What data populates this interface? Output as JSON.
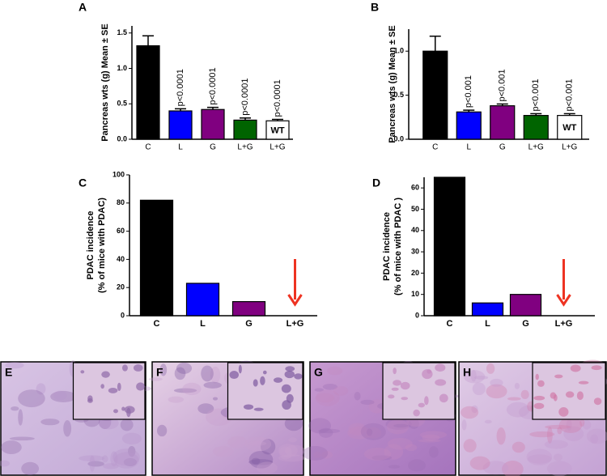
{
  "chart_data": [
    {
      "type": "bar",
      "panel": "A",
      "ylabel": [
        "Pancreas wts (g) Mean ± SE"
      ],
      "categories": [
        "C",
        "L",
        "G",
        "L+G",
        "L+G"
      ],
      "values": [
        1.32,
        0.4,
        0.42,
        0.27,
        0.26
      ],
      "errors": [
        0.14,
        0.03,
        0.03,
        0.03,
        0.02
      ],
      "colors": [
        "#000000",
        "#0000ff",
        "#800080",
        "#006400",
        "#ffffff"
      ],
      "annotations": [
        null,
        "p<0.0001",
        "p<0.0001",
        "p<0.0001",
        "p<0.0001"
      ],
      "bar_labels": [
        null,
        null,
        null,
        null,
        "WT"
      ],
      "ylim": [
        0,
        1.6
      ],
      "yticks": [
        {
          "value": 0,
          "label": "0.0"
        },
        0.5,
        {
          "value": 1,
          "label": "1.0"
        },
        1.5
      ]
    },
    {
      "type": "bar",
      "panel": "B",
      "ylabel": [
        "Pancreas wts (g) Mean ± SE"
      ],
      "categories": [
        "C",
        "L",
        "G",
        "L+G",
        "L+G"
      ],
      "values": [
        1.0,
        0.31,
        0.38,
        0.27,
        0.27
      ],
      "errors": [
        0.17,
        0.02,
        0.02,
        0.02,
        0.02
      ],
      "colors": [
        "#000000",
        "#0000ff",
        "#800080",
        "#006400",
        "#ffffff"
      ],
      "annotations": [
        null,
        "p<0.001",
        "p<0.001",
        "p<0.001",
        "p<0.001"
      ],
      "bar_labels": [
        null,
        null,
        null,
        null,
        "WT"
      ],
      "ylim": [
        0,
        1.25
      ],
      "yticks": [
        {
          "value": 0,
          "label": "0.0"
        },
        0.5,
        {
          "value": 1,
          "label": "1.0"
        }
      ]
    },
    {
      "type": "bar",
      "panel": "C",
      "ylabel": [
        "PDAC incidence",
        "(% of mice with PDAC)"
      ],
      "categories": [
        "C",
        "L",
        "G",
        "L+G"
      ],
      "values": [
        82,
        23,
        10,
        0
      ],
      "colors": [
        "#000000",
        "#0000ff",
        "#800080",
        "#006400"
      ],
      "ylim": [
        0,
        100
      ],
      "yticks": [
        0,
        20,
        40,
        60,
        80,
        100
      ]
    },
    {
      "type": "bar",
      "panel": "D",
      "ylabel": [
        "PDAC incidence",
        "(% of mice with PDAC )"
      ],
      "categories": [
        "C",
        "L",
        "G",
        "L+G"
      ],
      "values": [
        65,
        6,
        10,
        0
      ],
      "colors": [
        "#000000",
        "#0000ff",
        "#800080",
        "#006400"
      ],
      "ylim": [
        0,
        65
      ],
      "yticks": [
        0,
        10,
        20,
        30,
        40,
        50,
        60
      ]
    }
  ],
  "images": [
    {
      "label": "E"
    },
    {
      "label": "F"
    },
    {
      "label": "G"
    },
    {
      "label": "H"
    }
  ]
}
